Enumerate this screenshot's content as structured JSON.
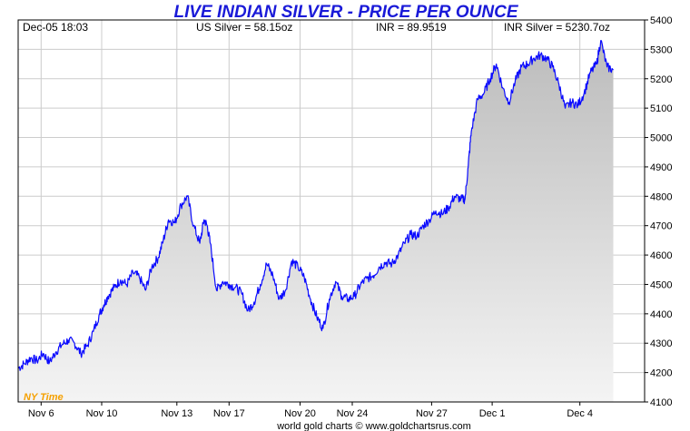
{
  "chart_data": {
    "type": "area",
    "title": "LIVE INDIAN SILVER - PRICE PER OUNCE",
    "header": {
      "datetime": "Dec-05  18:03",
      "us_silver": "US Silver = 58.15oz",
      "inr": "INR = 89.9519",
      "inr_silver": "INR Silver = 5230.7oz"
    },
    "timezone_label": "NY Time",
    "credit": "world gold charts © www.goldchartsrus.com",
    "ylim": [
      4100,
      5400
    ],
    "yticks": [
      4100,
      4200,
      4300,
      4400,
      4500,
      4600,
      4700,
      4800,
      4900,
      5000,
      5100,
      5200,
      5300,
      5400
    ],
    "x_labels": [
      "Nov 6",
      "Nov 10",
      "Nov 13",
      "Nov 17",
      "Nov 20",
      "Nov 24",
      "Nov 27",
      "Dec 1",
      "Dec 4"
    ],
    "xlim": [
      0,
      30
    ],
    "x_label_positions": [
      1.1,
      4.0,
      7.6,
      10.1,
      13.5,
      16.0,
      19.8,
      22.7,
      26.9
    ],
    "grid": true,
    "series": [
      {
        "values_x": [
          0,
          0.3,
          0.6,
          0.9,
          1.2,
          1.5,
          1.8,
          2.1,
          2.4,
          2.7,
          3.0,
          3.3,
          3.6,
          3.9,
          4.1,
          4.3,
          4.6,
          4.9,
          5.2,
          5.5,
          5.8,
          6.1,
          6.4,
          6.7,
          6.95,
          7.2,
          7.5,
          7.8,
          8.1,
          8.4,
          8.7,
          8.9,
          9.05,
          9.2,
          9.5,
          9.8,
          10.1,
          10.4,
          10.7,
          11.0,
          11.3,
          11.6,
          11.9,
          12.2,
          12.5,
          12.8,
          13.1,
          13.4,
          13.7,
          14.0,
          14.3,
          14.6,
          14.9,
          15.2,
          15.5,
          15.8,
          16.1,
          16.4,
          16.7,
          17.0,
          17.3,
          17.6,
          17.9,
          18.2,
          18.5,
          18.8,
          19.1,
          19.4,
          19.7,
          20.0,
          20.3,
          20.6,
          20.9,
          21.2,
          21.4,
          21.55,
          21.7,
          22.0,
          22.3,
          22.6,
          22.9,
          23.2,
          23.5,
          23.8,
          24.1,
          24.4,
          24.7,
          25.0,
          25.3,
          25.6,
          25.9,
          26.2,
          26.5,
          26.8,
          27.1,
          27.4,
          27.7,
          27.9,
          28.2,
          28.5
        ],
        "values_y": [
          4215,
          4230,
          4250,
          4240,
          4265,
          4235,
          4270,
          4295,
          4310,
          4300,
          4265,
          4290,
          4340,
          4400,
          4430,
          4460,
          4490,
          4515,
          4500,
          4540,
          4525,
          4480,
          4560,
          4590,
          4650,
          4720,
          4710,
          4770,
          4800,
          4700,
          4640,
          4720,
          4700,
          4640,
          4480,
          4510,
          4500,
          4490,
          4470,
          4410,
          4440,
          4500,
          4570,
          4530,
          4450,
          4480,
          4580,
          4560,
          4525,
          4450,
          4390,
          4350,
          4450,
          4510,
          4460,
          4450,
          4460,
          4500,
          4520,
          4530,
          4560,
          4575,
          4570,
          4600,
          4640,
          4670,
          4665,
          4700,
          4720,
          4750,
          4740,
          4760,
          4800,
          4790,
          4790,
          4900,
          5020,
          5130,
          5150,
          5200,
          5250,
          5170,
          5120,
          5190,
          5240,
          5250,
          5270,
          5280,
          5270,
          5240,
          5180,
          5100,
          5120,
          5110,
          5150,
          5220,
          5250,
          5330,
          5240,
          5230
        ]
      }
    ],
    "colors": {
      "line": "#0a0aff",
      "title": "#1a1ad8",
      "grid": "#cccccc",
      "fill_top": "#bcbcbc",
      "fill_bottom": "#f4f4f4",
      "timezone": "#f5a000"
    }
  }
}
